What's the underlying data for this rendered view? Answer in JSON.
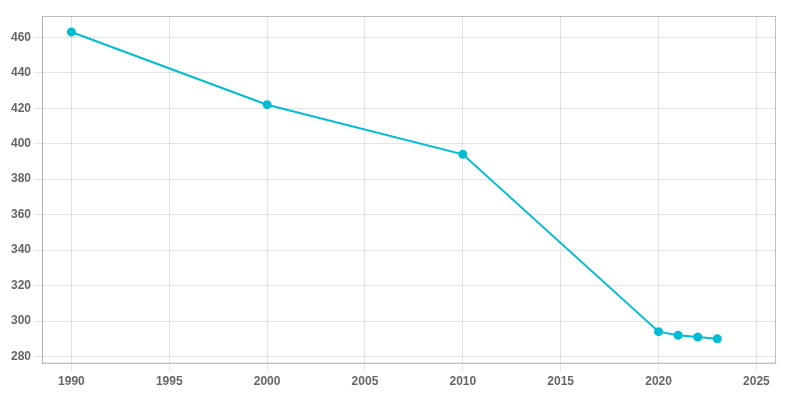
{
  "chart_data": {
    "type": "line",
    "x": [
      1990,
      2000,
      2010,
      2020,
      2021,
      2022,
      2023
    ],
    "values": [
      463,
      422,
      394,
      294,
      292,
      291,
      290
    ],
    "color": "#00bcd4",
    "marker": "circle",
    "xlim": [
      1988.5,
      2026
    ],
    "ylim": [
      276,
      472
    ],
    "xticks": [
      1990,
      1995,
      2000,
      2005,
      2010,
      2015,
      2020,
      2025
    ],
    "yticks": [
      280,
      300,
      320,
      340,
      360,
      380,
      400,
      420,
      440,
      460
    ],
    "grid": true
  }
}
